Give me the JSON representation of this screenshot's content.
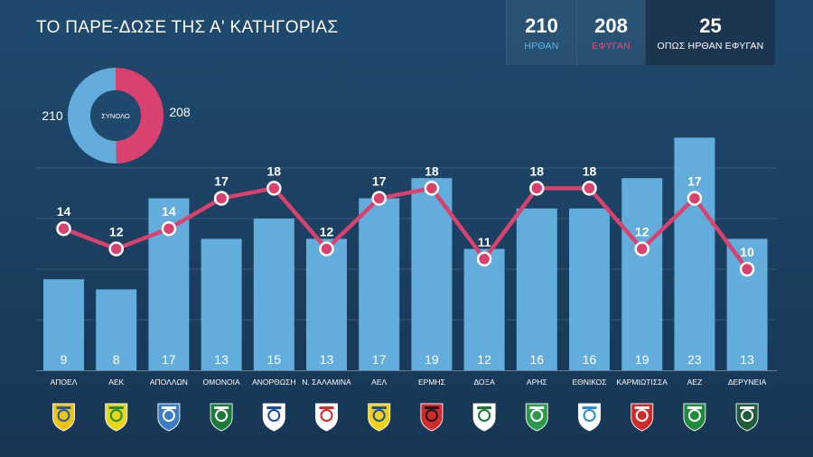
{
  "title": "ΤΟ ΠΑΡΕ-ΔΩΣΕ ΤΗΣ Α' ΚΑΤΗΓΟΡΙΑΣ",
  "stats": [
    {
      "value": "210",
      "label": "ΗΡΘΑΝ",
      "color": "#5fb2e6"
    },
    {
      "value": "208",
      "label": "ΕΦΥΓΑΝ",
      "color": "#e74b7c"
    },
    {
      "value": "25",
      "label": "ΟΠΩΣ ΗΡΘΑΝ ΕΦΥΓΑΝ",
      "color": "#ffffff"
    }
  ],
  "donut": {
    "center_label": "ΣΥΝΟΛΟ",
    "left_value": 210,
    "right_value": 208,
    "left_color": "#62addb",
    "right_color": "#d9416f"
  },
  "chart_data": {
    "type": "bar+line",
    "title": "ΤΟ ΠΑΡΕ-ΔΩΣΕ ΤΗΣ Α' ΚΑΤΗΓΟΡΙΑΣ",
    "categories": [
      "ΑΠΟΕΛ",
      "ΑΕΚ",
      "ΑΠΟΛΛΩΝ",
      "ΟΜΟΝΟΙΑ",
      "ΑΝΟΡΘΩΣΗ",
      "Ν. ΣΑΛΑΜΙΝΑ",
      "ΑΕΛ",
      "ΕΡΜΗΣ",
      "ΔΟΞΑ",
      "ΑΡΗΣ",
      "ΕΘΝΙΚΟΣ",
      "ΚΑΡΜΙΩΤΙΣΣΑ",
      "ΑΕΖ",
      "ΔΕΡΥΝΕΙΑ"
    ],
    "series": [
      {
        "name": "ΗΡΘΑΝ",
        "type": "bar",
        "color": "#62addb",
        "values": [
          9,
          8,
          17,
          13,
          15,
          13,
          17,
          19,
          12,
          16,
          16,
          19,
          23,
          13
        ]
      },
      {
        "name": "ΕΦΥΓΑΝ",
        "type": "line",
        "color": "#d9416f",
        "values": [
          14,
          12,
          14,
          17,
          18,
          12,
          17,
          18,
          11,
          18,
          18,
          12,
          17,
          10
        ]
      }
    ],
    "ylim": [
      0,
      25
    ],
    "grid": true,
    "xlabel": "",
    "ylabel": ""
  },
  "team_logos": [
    {
      "name": "ΑΠΟΕΛ",
      "icon": "apoel-crest",
      "bg": "#f2c40f",
      "fg": "#1d5ea8"
    },
    {
      "name": "ΑΕΚ",
      "icon": "aek-crest",
      "bg": "#e7d61a",
      "fg": "#2a8a3a"
    },
    {
      "name": "ΑΠΟΛΛΩΝ",
      "icon": "apollon-crest",
      "bg": "#3b7cc4",
      "fg": "#ffffff"
    },
    {
      "name": "ΟΜΟΝΟΙΑ",
      "icon": "omonoia-crest",
      "bg": "#1b7a3a",
      "fg": "#ffffff"
    },
    {
      "name": "ΑΝΟΡΘΩΣΗ",
      "icon": "anorthosis-crest",
      "bg": "#ffffff",
      "fg": "#1a4fa0"
    },
    {
      "name": "Ν. ΣΑΛΑΜΙΝΑ",
      "icon": "salamina-crest",
      "bg": "#ffffff",
      "fg": "#d62b2b"
    },
    {
      "name": "ΑΕΛ",
      "icon": "ael-crest",
      "bg": "#f0d21a",
      "fg": "#1a4fa0"
    },
    {
      "name": "ΕΡΜΗΣ",
      "icon": "ermis-crest",
      "bg": "#d12a2a",
      "fg": "#1a1a1a"
    },
    {
      "name": "ΔΟΞΑ",
      "icon": "doxa-crest",
      "bg": "#ffffff",
      "fg": "#1b7a3a"
    },
    {
      "name": "ΑΡΗΣ",
      "icon": "aris-crest",
      "bg": "#2b9a4a",
      "fg": "#ffffff"
    },
    {
      "name": "ΕΘΝΙΚΟΣ",
      "icon": "ethnikos-crest",
      "bg": "#ffffff",
      "fg": "#2a8fd0"
    },
    {
      "name": "ΚΑΡΜΙΩΤΙΣΣΑ",
      "icon": "karmiotissa-crest",
      "bg": "#cf2b2b",
      "fg": "#ffffff"
    },
    {
      "name": "ΑΕΖ",
      "icon": "aez-crest",
      "bg": "#1f8a3a",
      "fg": "#ffffff"
    },
    {
      "name": "ΔΕΡΥΝΕΙΑ",
      "icon": "derynia-crest",
      "bg": "#1f5a3a",
      "fg": "#ffffff"
    }
  ]
}
